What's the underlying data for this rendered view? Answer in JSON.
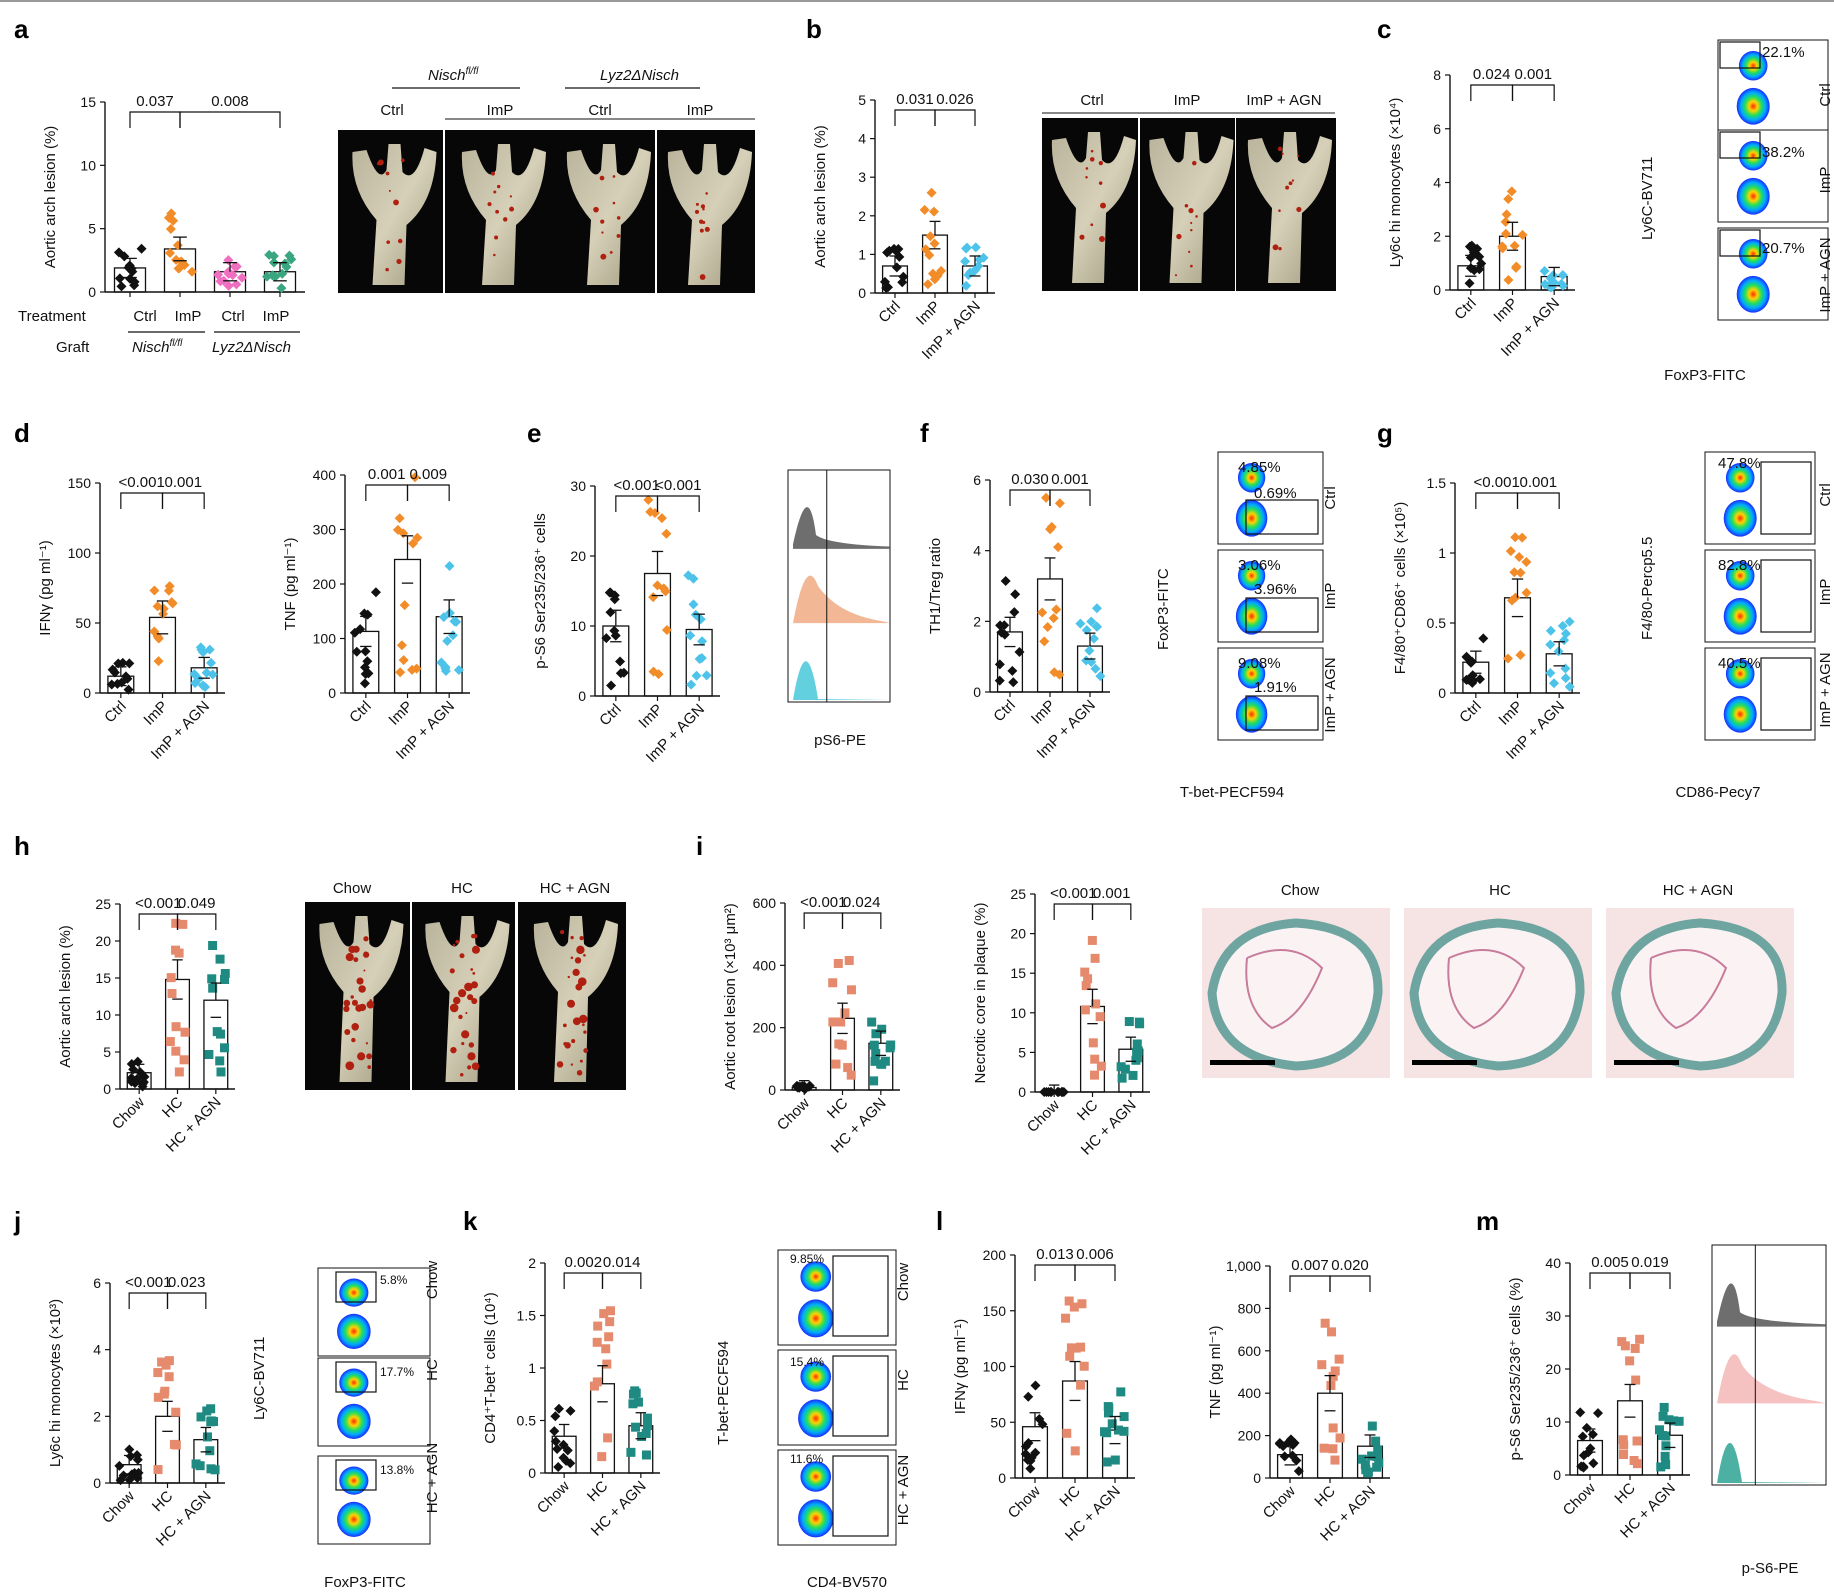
{
  "colors": {
    "ctrl": "#111111",
    "imp": "#f28c28",
    "agn": "#4dc3ea",
    "pink": "#f06ec0",
    "green": "#3aa680",
    "hc": "#e58a6c",
    "hcagn": "#1f8a82"
  },
  "letters": [
    "a",
    "b",
    "c",
    "d",
    "e",
    "f",
    "g",
    "h",
    "i",
    "j",
    "k",
    "l",
    "m"
  ],
  "panel_a": {
    "treatment_label": "Treatment",
    "graft_label": "Graft",
    "treatments": [
      "Ctrl",
      "ImP",
      "Ctrl",
      "ImP"
    ],
    "graft1": "Nisch",
    "graft1_sup": "fl/fl",
    "graft2": "Lyz2ΔNisch",
    "img_group1": "Nisch",
    "img_group1_sup": "fl/fl",
    "img_group2": "Lyz2ΔNisch",
    "img_labels": [
      "Ctrl",
      "ImP",
      "Ctrl",
      "ImP"
    ]
  },
  "panel_b": {
    "img_labels": [
      "Ctrl",
      "ImP",
      "ImP + AGN"
    ]
  },
  "panel_c": {
    "flow_pcts": [
      "22.1%",
      "38.2%",
      "20.7%"
    ],
    "row_labels": [
      "Ctrl",
      "ImP",
      "ImP + AGN"
    ],
    "ylabel": "Ly6C-BV711",
    "xlabel": "FoxP3-FITC"
  },
  "panel_e": {
    "xlabel": "pS6-PE"
  },
  "panel_f": {
    "flow_pcts": [
      [
        "4.85%",
        "0.69%"
      ],
      [
        "3.06%",
        "3.96%"
      ],
      [
        "9.08%",
        "1.91%"
      ]
    ],
    "row_labels": [
      "Ctrl",
      "ImP",
      "ImP + AGN"
    ],
    "ylabel": "FoxP3-FITC",
    "xlabel": "T-bet-PECF594"
  },
  "panel_g": {
    "flow_pcts": [
      "47.8%",
      "82.8%",
      "40.5%"
    ],
    "row_labels": [
      "Ctrl",
      "ImP",
      "ImP + AGN"
    ],
    "ylabel": "F4/80-Percp5.5",
    "xlabel": "CD86-Pecy7"
  },
  "panel_h": {
    "img_labels": [
      "Chow",
      "HC",
      "HC + AGN"
    ]
  },
  "panel_i": {
    "img_labels": [
      "Chow",
      "HC",
      "HC + AGN"
    ]
  },
  "panel_j": {
    "flow_pcts": [
      "5.8%",
      "17.7%",
      "13.8%"
    ],
    "row_labels": [
      "Chow",
      "HC",
      "HC + AGN"
    ],
    "ylabel": "Ly6C-BV711",
    "xlabel": "FoxP3-FITC"
  },
  "panel_k": {
    "flow_pcts": [
      "9.85%",
      "15.4%",
      "11.6%"
    ],
    "row_labels": [
      "Chow",
      "HC",
      "HC + AGN"
    ],
    "ylabel": "T-bet-PECF594",
    "xlabel": "CD4-BV570"
  },
  "panel_m": {
    "xlabel": "p-S6-PE"
  },
  "chart_data": [
    {
      "id": "a",
      "type": "bar",
      "categories": [
        "Ctrl",
        "ImP",
        "Ctrl",
        "ImP"
      ],
      "values": [
        1.9,
        3.4,
        1.6,
        1.6
      ],
      "ylabel": "Aortic arch lesion (%)",
      "ylim": [
        0,
        15
      ],
      "yticks": [
        0,
        5,
        10,
        15
      ],
      "pvalues": [
        {
          "from": 1,
          "to": 2,
          "label": "0.037"
        },
        {
          "from": 2,
          "to": 4,
          "label": "0.008"
        }
      ]
    },
    {
      "id": "b",
      "type": "bar",
      "categories": [
        "Ctrl",
        "ImP",
        "ImP + AGN"
      ],
      "values": [
        0.7,
        1.5,
        0.7
      ],
      "ylabel": "Aortic arch lesion (%)",
      "ylim": [
        0,
        5
      ],
      "yticks": [
        0,
        1,
        2,
        3,
        4,
        5
      ],
      "pvalues": [
        {
          "from": 1,
          "to": 2,
          "label": "0.031"
        },
        {
          "from": 2,
          "to": 3,
          "label": "0.026"
        }
      ]
    },
    {
      "id": "c",
      "type": "bar",
      "categories": [
        "Ctrl",
        "ImP",
        "ImP + AGN"
      ],
      "values": [
        0.9,
        2.0,
        0.5
      ],
      "ylabel": "Ly6c hi monocytes (×10⁴)",
      "ylim": [
        0,
        8
      ],
      "yticks": [
        0,
        2,
        4,
        6,
        8
      ],
      "pvalues": [
        {
          "from": 1,
          "to": 2,
          "label": "0.024"
        },
        {
          "from": 2,
          "to": 3,
          "label": "0.001"
        }
      ]
    },
    {
      "id": "d1",
      "type": "bar",
      "categories": [
        "Ctrl",
        "ImP",
        "ImP + AGN"
      ],
      "values": [
        12,
        54,
        18
      ],
      "ylabel": "IFNγ (pg ml⁻¹)",
      "ylim": [
        0,
        150
      ],
      "yticks": [
        0,
        50,
        100,
        150
      ],
      "pvalues": [
        {
          "from": 1,
          "to": 2,
          "label": "<0.001"
        },
        {
          "from": 2,
          "to": 3,
          "label": "0.001"
        }
      ]
    },
    {
      "id": "d2",
      "type": "bar",
      "categories": [
        "Ctrl",
        "ImP",
        "ImP + AGN"
      ],
      "values": [
        113,
        245,
        140
      ],
      "ylabel": "TNF (pg ml⁻¹)",
      "ylim": [
        0,
        400
      ],
      "yticks": [
        0,
        100,
        200,
        300,
        400
      ],
      "pvalues": [
        {
          "from": 1,
          "to": 2,
          "label": "0.001"
        },
        {
          "from": 2,
          "to": 3,
          "label": "0.009"
        }
      ]
    },
    {
      "id": "e",
      "type": "bar",
      "categories": [
        "Ctrl",
        "ImP",
        "ImP + AGN"
      ],
      "values": [
        10,
        17.5,
        9.5
      ],
      "ylabel": "p-S6 Ser235/236⁺ cells",
      "ylim": [
        0,
        30
      ],
      "yticks": [
        0,
        10,
        20,
        30
      ],
      "pvalues": [
        {
          "from": 1,
          "to": 2,
          "label": "<0.001"
        },
        {
          "from": 2,
          "to": 3,
          "label": "<0.001"
        }
      ]
    },
    {
      "id": "f",
      "type": "bar",
      "categories": [
        "Ctrl",
        "ImP",
        "ImP + AGN"
      ],
      "values": [
        1.7,
        3.2,
        1.3
      ],
      "ylabel": "TH1/Treg ratio",
      "ylim": [
        0,
        6
      ],
      "yticks": [
        0,
        2,
        4,
        6
      ],
      "pvalues": [
        {
          "from": 1,
          "to": 2,
          "label": "0.030"
        },
        {
          "from": 2,
          "to": 3,
          "label": "0.001"
        }
      ]
    },
    {
      "id": "g",
      "type": "bar",
      "categories": [
        "Ctrl",
        "ImP",
        "ImP + AGN"
      ],
      "values": [
        0.22,
        0.68,
        0.28
      ],
      "ylabel": "F4/80⁺CD86⁺ cells (×10⁵)",
      "ylim": [
        0,
        1.5
      ],
      "yticks": [
        0,
        0.5,
        1.0,
        1.5
      ],
      "pvalues": [
        {
          "from": 1,
          "to": 2,
          "label": "<0.001"
        },
        {
          "from": 2,
          "to": 3,
          "label": "0.001"
        }
      ]
    },
    {
      "id": "h",
      "type": "bar",
      "categories": [
        "Chow",
        "HC",
        "HC + AGN"
      ],
      "values": [
        2.2,
        14.8,
        12
      ],
      "ylabel": "Aortic arch lesion (%)",
      "ylim": [
        0,
        25
      ],
      "yticks": [
        0,
        5,
        10,
        15,
        20,
        25
      ],
      "pvalues": [
        {
          "from": 1,
          "to": 2,
          "label": "<0.001"
        },
        {
          "from": 2,
          "to": 3,
          "label": "0.049"
        }
      ]
    },
    {
      "id": "i1",
      "type": "bar",
      "categories": [
        "Chow",
        "HC",
        "HC + AGN"
      ],
      "values": [
        8,
        230,
        150
      ],
      "ylabel": "Aortic root lesion (×10³ μm²)",
      "ylim": [
        0,
        600
      ],
      "yticks": [
        0,
        200,
        400,
        600
      ],
      "pvalues": [
        {
          "from": 1,
          "to": 2,
          "label": "<0.001"
        },
        {
          "from": 2,
          "to": 3,
          "label": "0.024"
        }
      ]
    },
    {
      "id": "i2",
      "type": "bar",
      "categories": [
        "Chow",
        "HC",
        "HC + AGN"
      ],
      "values": [
        0,
        10.8,
        5.4
      ],
      "ylabel": "Necrotic core in plaque (%)",
      "ylim": [
        0,
        25
      ],
      "yticks": [
        0,
        5,
        10,
        15,
        20,
        25
      ],
      "pvalues": [
        {
          "from": 1,
          "to": 2,
          "label": "<0.001"
        },
        {
          "from": 2,
          "to": 3,
          "label": "0.001"
        }
      ]
    },
    {
      "id": "j",
      "type": "bar",
      "categories": [
        "Chow",
        "HC",
        "HC + AGN"
      ],
      "values": [
        0.55,
        2.0,
        1.3
      ],
      "ylabel": "Ly6c hi monocytes (×10³)",
      "ylim": [
        0,
        6
      ],
      "yticks": [
        0,
        2,
        4,
        6
      ],
      "pvalues": [
        {
          "from": 1,
          "to": 2,
          "label": "<0.001"
        },
        {
          "from": 2,
          "to": 3,
          "label": "0.023"
        }
      ]
    },
    {
      "id": "k",
      "type": "bar",
      "categories": [
        "Chow",
        "HC",
        "HC + AGN"
      ],
      "values": [
        0.35,
        0.85,
        0.45
      ],
      "ylabel": "CD4⁺T-bet⁺ cells (10⁴)",
      "ylim": [
        0,
        2.0
      ],
      "yticks": [
        0,
        0.5,
        1.0,
        1.5,
        2.0
      ],
      "pvalues": [
        {
          "from": 1,
          "to": 2,
          "label": "0.002"
        },
        {
          "from": 2,
          "to": 3,
          "label": "0.014"
        }
      ]
    },
    {
      "id": "l1",
      "type": "bar",
      "categories": [
        "Chow",
        "HC",
        "HC + AGN"
      ],
      "values": [
        46,
        87,
        43
      ],
      "ylabel": "IFNγ (pg ml⁻¹)",
      "ylim": [
        0,
        200
      ],
      "yticks": [
        0,
        50,
        100,
        150,
        200
      ],
      "pvalues": [
        {
          "from": 1,
          "to": 2,
          "label": "0.013"
        },
        {
          "from": 2,
          "to": 3,
          "label": "0.006"
        }
      ]
    },
    {
      "id": "l2",
      "type": "bar",
      "categories": [
        "Chow",
        "HC",
        "HC + AGN"
      ],
      "values": [
        110,
        400,
        150
      ],
      "ylabel": "TNF (pg ml⁻¹)",
      "ylim": [
        0,
        1000
      ],
      "yticks": [
        0,
        200,
        400,
        600,
        800,
        "1,000"
      ],
      "pvalues": [
        {
          "from": 1,
          "to": 2,
          "label": "0.007"
        },
        {
          "from": 2,
          "to": 3,
          "label": "0.020"
        }
      ]
    },
    {
      "id": "m",
      "type": "bar",
      "categories": [
        "Chow",
        "HC",
        "HC + AGN"
      ],
      "values": [
        6.5,
        14,
        7.5
      ],
      "ylabel": "p-S6 Ser235/236⁺ cells (%)",
      "ylim": [
        0,
        40
      ],
      "yticks": [
        0,
        10,
        20,
        30,
        40
      ],
      "pvalues": [
        {
          "from": 1,
          "to": 2,
          "label": "0.005"
        },
        {
          "from": 2,
          "to": 3,
          "label": "0.019"
        }
      ]
    }
  ]
}
